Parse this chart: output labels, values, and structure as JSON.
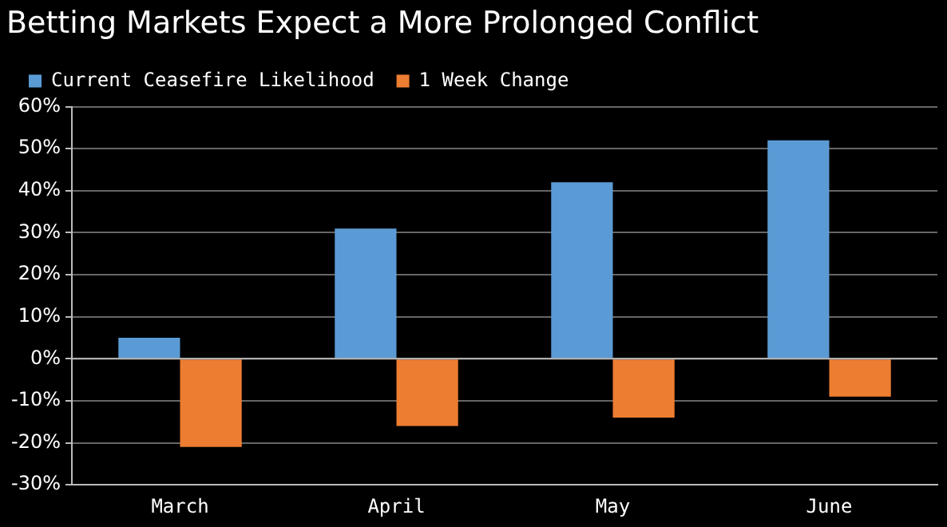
{
  "chart_data": {
    "type": "bar",
    "title": "Betting Markets Expect a More Prolonged Conflict",
    "categories": [
      "March",
      "April",
      "May",
      "June"
    ],
    "series": [
      {
        "name": "Current Ceasefire Likelihood",
        "color": "#5b9bd5",
        "values": [
          5,
          31,
          42,
          52
        ]
      },
      {
        "name": "1 Week Change",
        "color": "#ed7d31",
        "values": [
          -21,
          -16,
          -14,
          -9
        ]
      }
    ],
    "ylim": [
      -30,
      60
    ],
    "yticks": [
      {
        "value": -30,
        "label": "-30%"
      },
      {
        "value": -20,
        "label": "-20%"
      },
      {
        "value": -10,
        "label": "-10%"
      },
      {
        "value": 0,
        "label": "0%"
      },
      {
        "value": 10,
        "label": "10%"
      },
      {
        "value": 20,
        "label": "20%"
      },
      {
        "value": 30,
        "label": "30%"
      },
      {
        "value": 40,
        "label": "40%"
      },
      {
        "value": 50,
        "label": "50%"
      },
      {
        "value": 60,
        "label": "60%"
      }
    ],
    "grid": "y",
    "legend": "top left"
  }
}
